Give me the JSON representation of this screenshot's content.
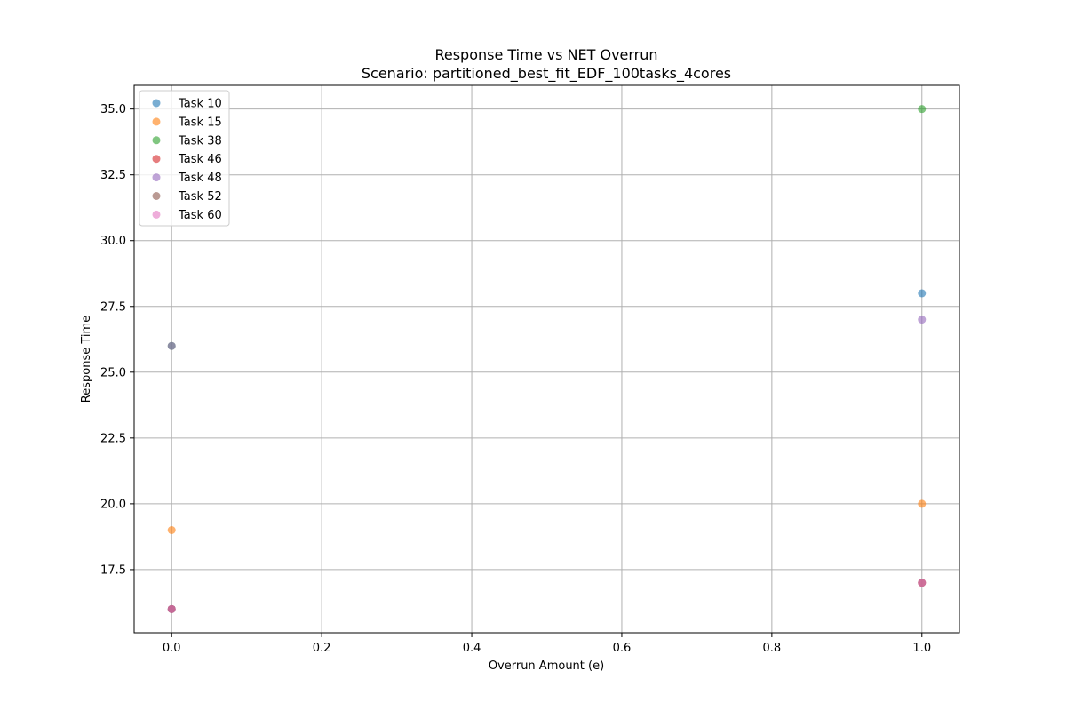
{
  "chart_data": {
    "type": "scatter",
    "title": "Response Time vs NET Overrun",
    "subtitle": "Scenario: partitioned_best_fit_EDF_100tasks_4cores",
    "xlabel": "Overrun Amount (e)",
    "ylabel": "Response Time",
    "xlim": [
      -0.05,
      1.05
    ],
    "ylim": [
      15.1,
      35.9
    ],
    "x_ticks": [
      0.0,
      0.2,
      0.4,
      0.6,
      0.8,
      1.0
    ],
    "x_tick_labels": [
      "0.0",
      "0.2",
      "0.4",
      "0.6",
      "0.8",
      "1.0"
    ],
    "y_ticks": [
      17.5,
      20.0,
      22.5,
      25.0,
      27.5,
      30.0,
      32.5,
      35.0
    ],
    "y_tick_labels": [
      "17.5",
      "20.0",
      "22.5",
      "25.0",
      "27.5",
      "30.0",
      "32.5",
      "35.0"
    ],
    "grid": true,
    "legend_position": "top-left",
    "series": [
      {
        "name": "Task 10",
        "color": "#1f77b4",
        "points": [
          [
            0,
            16
          ],
          [
            1,
            28
          ]
        ]
      },
      {
        "name": "Task 15",
        "color": "#ff7f0e",
        "points": [
          [
            0,
            19
          ],
          [
            1,
            20
          ]
        ]
      },
      {
        "name": "Task 38",
        "color": "#2ca02c",
        "points": [
          [
            0,
            26
          ],
          [
            1,
            35
          ]
        ]
      },
      {
        "name": "Task 46",
        "color": "#d62728",
        "points": [
          [
            0,
            16
          ],
          [
            1,
            17
          ]
        ]
      },
      {
        "name": "Task 48",
        "color": "#9467bd",
        "points": [
          [
            0,
            26
          ],
          [
            1,
            27
          ]
        ]
      },
      {
        "name": "Task 52",
        "color": "#8c564b",
        "points": [
          [
            0,
            16
          ],
          [
            1,
            17
          ]
        ]
      },
      {
        "name": "Task 60",
        "color": "#e377c2",
        "points": [
          [
            0,
            16
          ],
          [
            1,
            17
          ]
        ]
      }
    ]
  }
}
